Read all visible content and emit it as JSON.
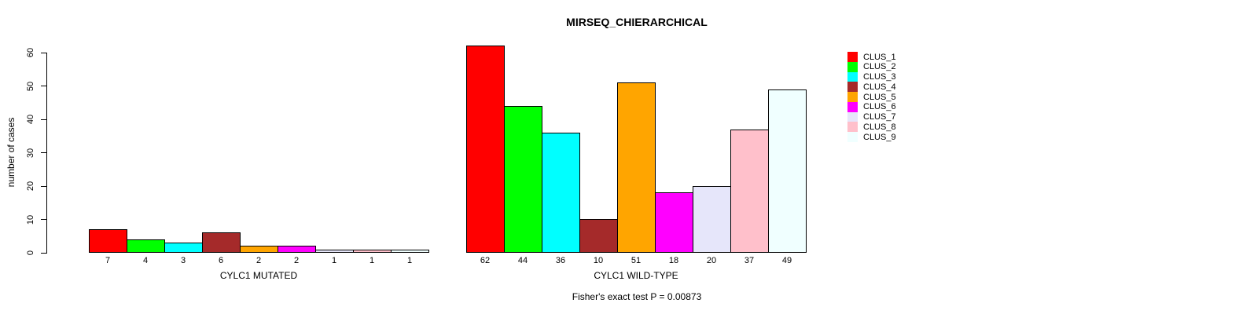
{
  "title": "MIRSEQ_CHIERARCHICAL",
  "chart_data": {
    "type": "bar",
    "title": "MIRSEQ_CHIERARCHICAL",
    "ylabel": "number of cases",
    "xlabel": "",
    "ylim": [
      0,
      60
    ],
    "yticks": [
      0,
      10,
      20,
      30,
      40,
      50,
      60
    ],
    "grid": false,
    "legend_position": "right",
    "series_names": [
      "CLUS_1",
      "CLUS_2",
      "CLUS_3",
      "CLUS_4",
      "CLUS_5",
      "CLUS_6",
      "CLUS_7",
      "CLUS_8",
      "CLUS_9"
    ],
    "colors": [
      "#ff0000",
      "#00ff00",
      "#00ffff",
      "#a52a2a",
      "#ffa500",
      "#ff00ff",
      "#e6e6fa",
      "#ffc0cb",
      "#f0ffff"
    ],
    "groups": [
      {
        "label": "CYLC1 MUTATED",
        "values": [
          7,
          4,
          3,
          6,
          2,
          2,
          1,
          1,
          1
        ]
      },
      {
        "label": "CYLC1 WILD-TYPE",
        "values": [
          62,
          44,
          36,
          10,
          51,
          18,
          20,
          37,
          49
        ]
      }
    ],
    "annotation": "Fisher's exact test P = 0.00873"
  }
}
